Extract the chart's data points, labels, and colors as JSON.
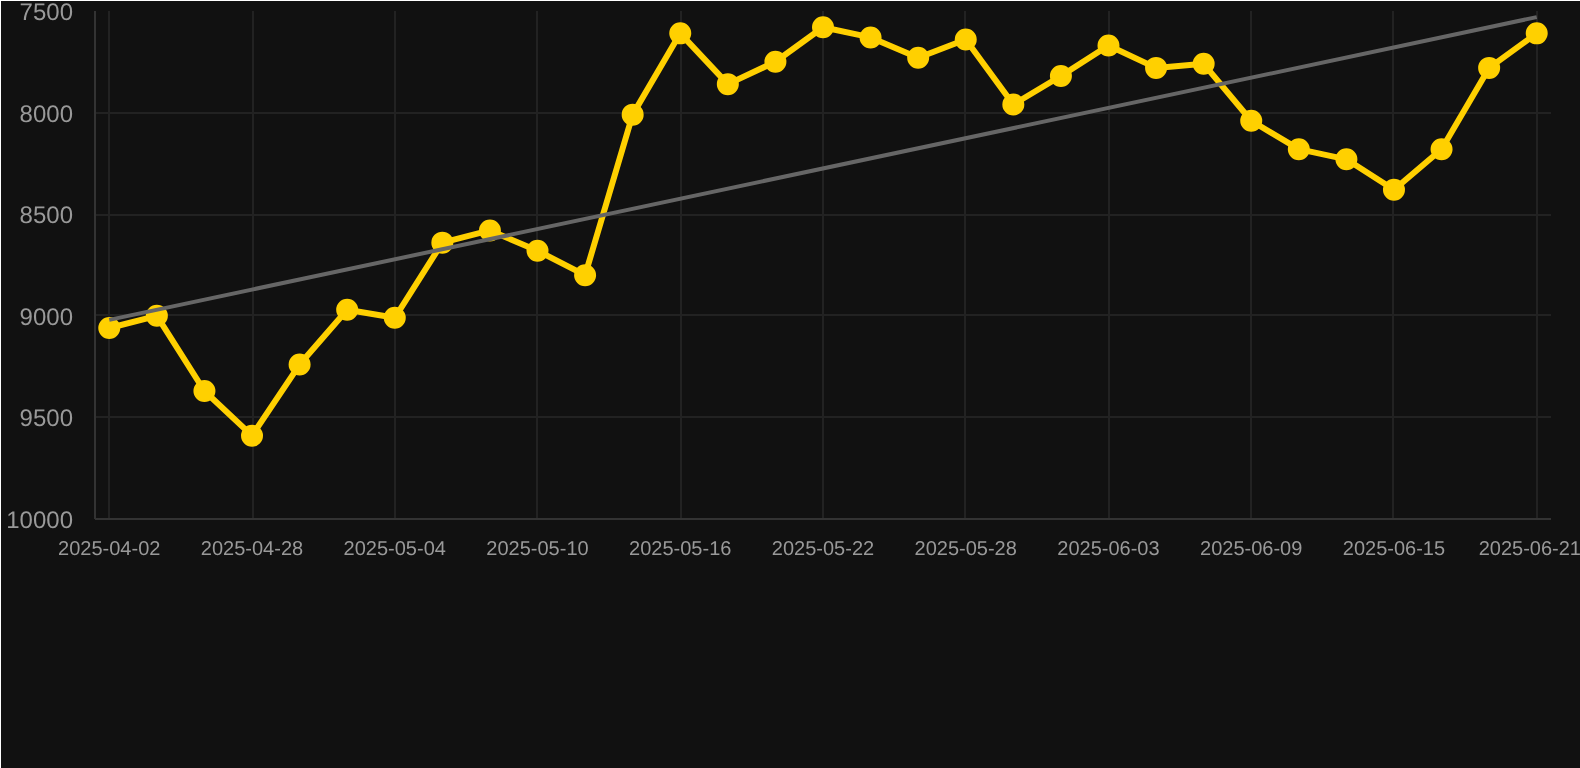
{
  "chart_data": {
    "type": "line",
    "categories": [
      "2025-04-02",
      null,
      null,
      "2025-04-28",
      null,
      null,
      "2025-05-04",
      null,
      null,
      "2025-05-10",
      null,
      null,
      "2025-05-16",
      null,
      null,
      "2025-05-22",
      null,
      null,
      "2025-05-28",
      null,
      null,
      "2025-06-03",
      null,
      null,
      "2025-06-09",
      null,
      null,
      "2025-06-15",
      null,
      null,
      "2025-06-21"
    ],
    "series": [
      {
        "color": "#ffd000",
        "marker": "circle",
        "values": [
          9060,
          9000,
          9370,
          9590,
          9240,
          8970,
          9010,
          8640,
          8580,
          8680,
          8800,
          8010,
          7610,
          7860,
          7750,
          7580,
          7630,
          7730,
          7640,
          7960,
          7820,
          7670,
          7780,
          7760,
          8040,
          8180,
          8230,
          8380,
          8180,
          7780,
          7610
        ]
      },
      {
        "color": "#666666",
        "marker": "none",
        "values": [
          9020,
          null,
          null,
          null,
          null,
          null,
          null,
          null,
          null,
          null,
          null,
          null,
          null,
          null,
          null,
          null,
          null,
          null,
          null,
          null,
          null,
          null,
          null,
          null,
          null,
          null,
          null,
          null,
          null,
          null,
          7530
        ]
      }
    ],
    "ylim": [
      10000,
      7500
    ],
    "yticks": [
      7500,
      8000,
      8500,
      9000,
      9500,
      10000
    ],
    "grid": true
  }
}
